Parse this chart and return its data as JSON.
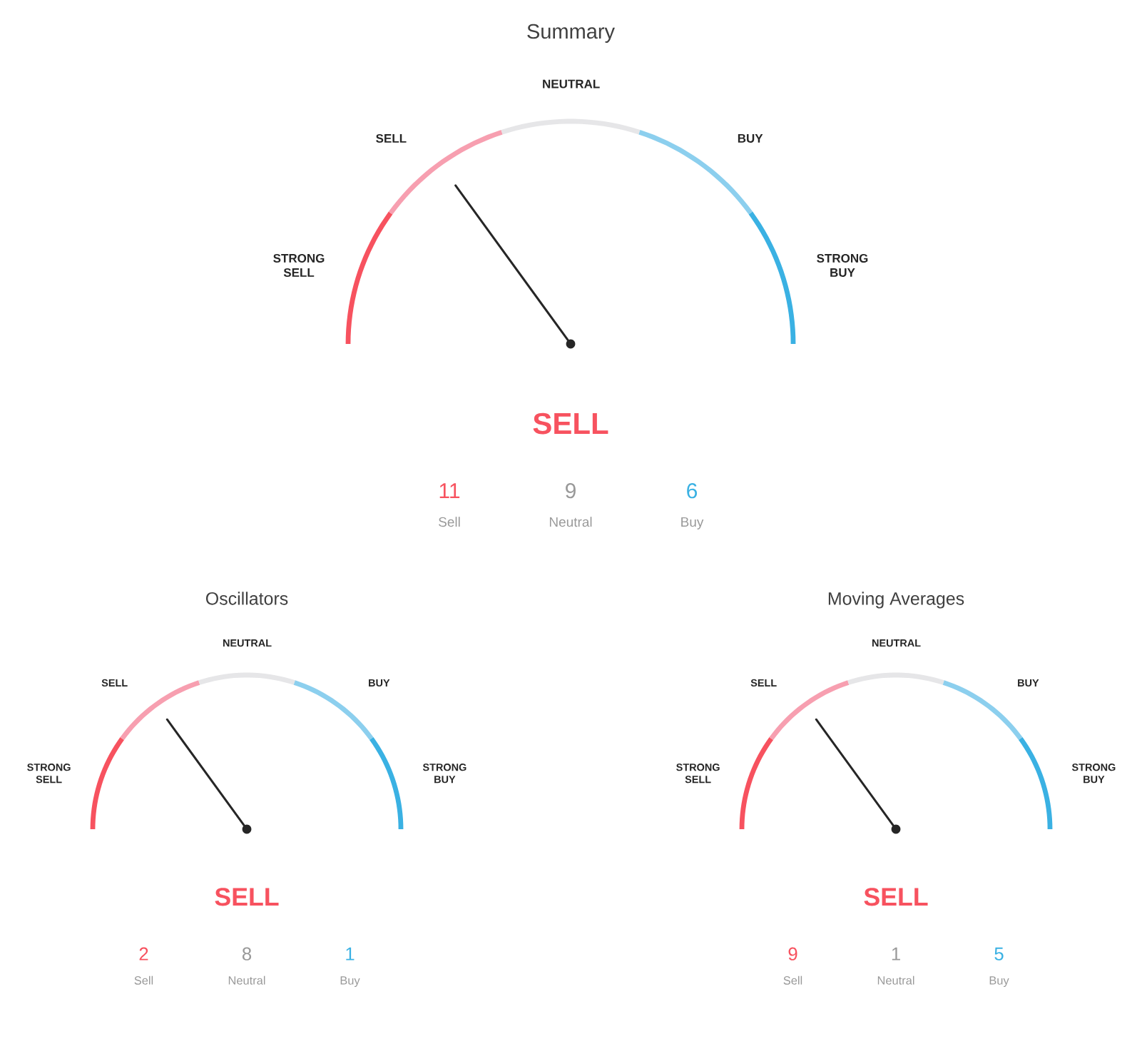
{
  "chart_data": [
    {
      "type": "donut",
      "title": "Summary",
      "categories": [
        "STRONG SELL",
        "SELL",
        "NEUTRAL",
        "BUY",
        "STRONG BUY"
      ],
      "values": [
        20,
        20,
        20,
        20,
        20
      ],
      "colors": [
        "#f7525f",
        "#f79fb0",
        "#e6e6e8",
        "#8ccfee",
        "#3ab1e3"
      ],
      "needle": "SELL",
      "annotations": [
        "11",
        "Sell",
        "9",
        "Neutral",
        "6",
        "Buy"
      ]
    },
    {
      "type": "donut",
      "title": "Oscillators",
      "categories": [
        "STRONG SELL",
        "SELL",
        "NEUTRAL",
        "BUY",
        "STRONG BUY"
      ],
      "values": [
        20,
        20,
        20,
        20,
        20
      ],
      "colors": [
        "#f7525f",
        "#f79fb0",
        "#e6e6e8",
        "#8ccfee",
        "#3ab1e3"
      ],
      "needle": "SELL",
      "annotations": [
        "2",
        "Sell",
        "8",
        "Neutral",
        "1",
        "Buy"
      ]
    },
    {
      "type": "donut",
      "title": "Moving Averages",
      "categories": [
        "STRONG SELL",
        "SELL",
        "NEUTRAL",
        "BUY",
        "STRONG BUY"
      ],
      "values": [
        20,
        20,
        20,
        20,
        20
      ],
      "colors": [
        "#f7525f",
        "#f79fb0",
        "#e6e6e8",
        "#8ccfee",
        "#3ab1e3"
      ],
      "needle": "SELL",
      "annotations": [
        "9",
        "Sell",
        "1",
        "Neutral",
        "5",
        "Buy"
      ]
    }
  ]
}
